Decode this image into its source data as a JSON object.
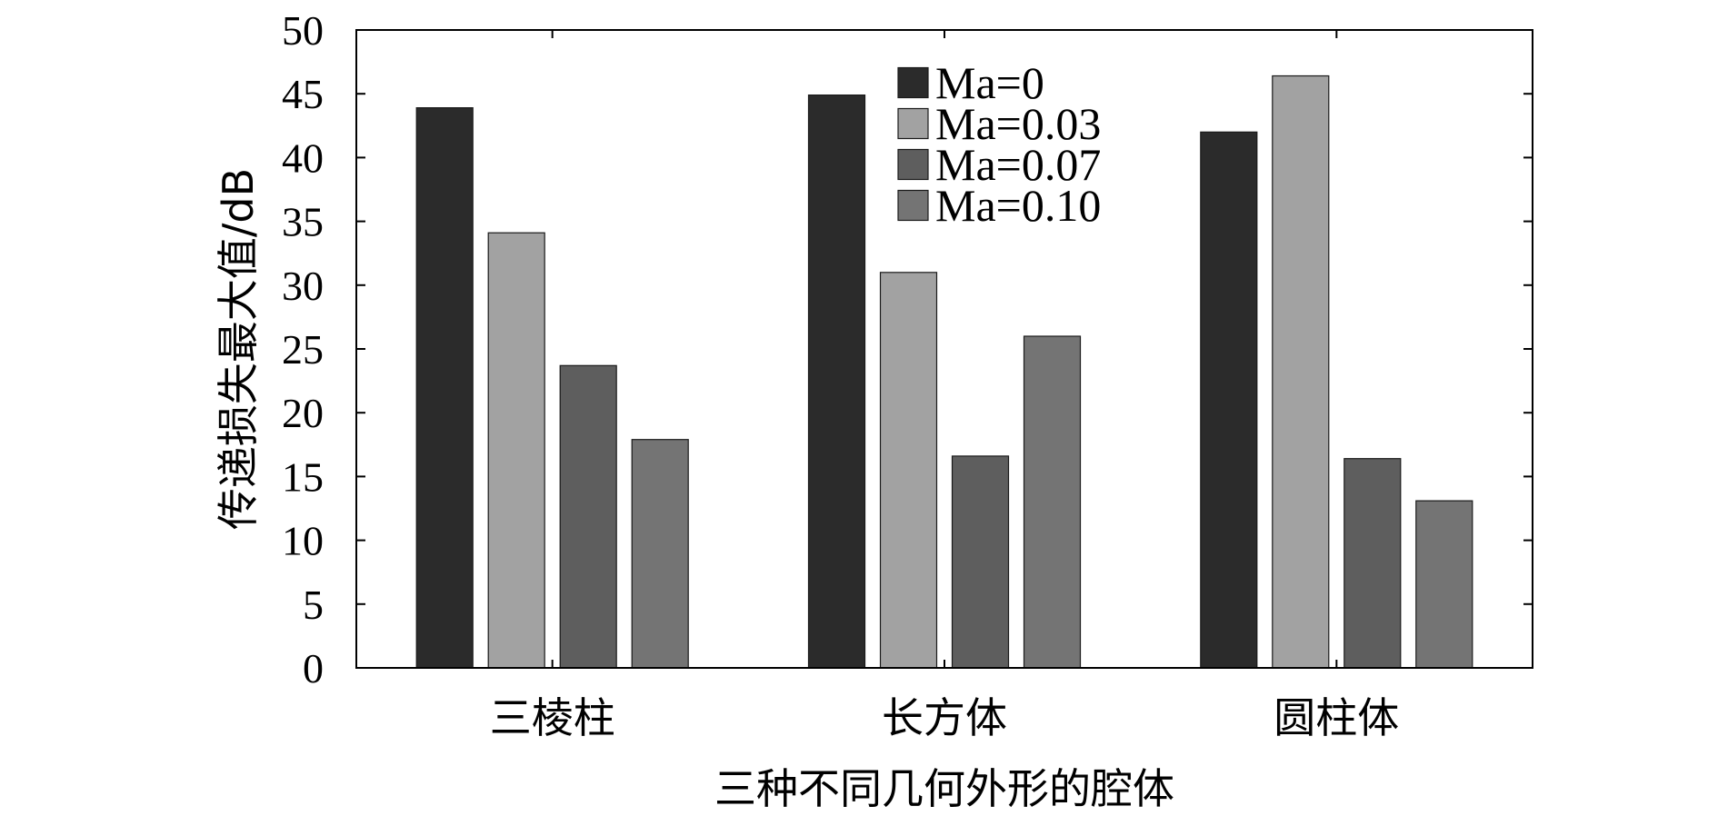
{
  "chart_data": {
    "type": "bar",
    "categories": [
      "三棱柱",
      "长方体",
      "圆柱体"
    ],
    "series": [
      {
        "name": "Ma=0",
        "values": [
          43.9,
          44.9,
          42.0
        ]
      },
      {
        "name": "Ma=0.03",
        "values": [
          34.1,
          31.0,
          46.4
        ]
      },
      {
        "name": "Ma=0.07",
        "values": [
          23.7,
          16.6,
          16.4
        ]
      },
      {
        "name": "Ma=0.10",
        "values": [
          17.9,
          26.0,
          13.1
        ]
      }
    ],
    "xlabel": "三种不同几何外形的腔体",
    "ylabel": "传递损失最大值/dB",
    "ylim": [
      0,
      50
    ],
    "yticks": [
      "0",
      "5",
      "10",
      "15",
      "20",
      "25",
      "30",
      "35",
      "40",
      "45",
      "50"
    ],
    "legend_position": "top-center",
    "grid": false,
    "colors": [
      "#2b2b2b",
      "#a2a2a2",
      "#5e5e5e",
      "#747474"
    ]
  }
}
